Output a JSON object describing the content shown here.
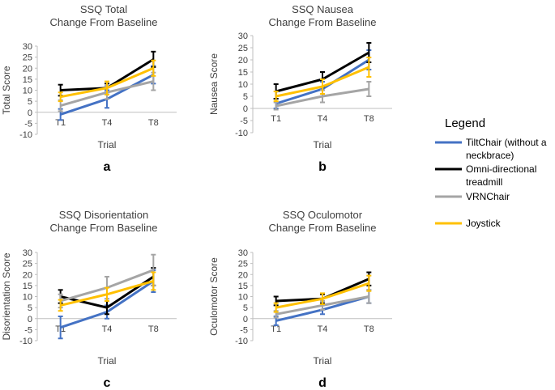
{
  "legend": {
    "title": "Legend",
    "items": [
      {
        "lines": [
          "TiltChair (without a",
          "neckbrace)"
        ],
        "color": "#4472C4"
      },
      {
        "lines": [
          "Omni-directional",
          "treadmill"
        ],
        "color": "#000000"
      },
      {
        "lines": [
          "VRNChair"
        ],
        "color": "#A5A5A5"
      },
      {
        "lines": [
          "Joystick"
        ],
        "color": "#FFC000"
      }
    ]
  },
  "chart_data": [
    {
      "type": "line",
      "panel": "a",
      "title": [
        "SSQ Total",
        "Change From Baseline"
      ],
      "xlabel": "Trial",
      "ylabel": "Total Score",
      "categories": [
        "T1",
        "T4",
        "T8"
      ],
      "ylim": [
        -10,
        30
      ],
      "yticks": [
        -10,
        -5,
        0,
        5,
        10,
        15,
        20,
        25,
        30
      ],
      "series": [
        {
          "name": "TiltChair (without a neckbrace)",
          "color": "#4472C4",
          "values": [
            -1,
            6,
            17
          ],
          "errors": [
            2.5,
            4,
            4
          ]
        },
        {
          "name": "Omni-directional treadmill",
          "color": "#000000",
          "values": [
            10,
            11,
            24
          ],
          "errors": [
            2.5,
            2,
            3.5
          ]
        },
        {
          "name": "VRNChair",
          "color": "#A5A5A5",
          "values": [
            3,
            9,
            14
          ],
          "errors": [
            2.5,
            3,
            4
          ]
        },
        {
          "name": "Joystick",
          "color": "#FFC000",
          "values": [
            7,
            11,
            20
          ],
          "errors": [
            2,
            3,
            3.5
          ]
        }
      ]
    },
    {
      "type": "line",
      "panel": "b",
      "title": [
        "SSQ Nausea",
        "Change From Baseline"
      ],
      "xlabel": "Trial",
      "ylabel": "Nausea Score",
      "categories": [
        "T1",
        "T4",
        "T8"
      ],
      "ylim": [
        -10,
        30
      ],
      "yticks": [
        -10,
        -5,
        0,
        5,
        10,
        15,
        20,
        25,
        30
      ],
      "series": [
        {
          "name": "TiltChair (without a neckbrace)",
          "color": "#4472C4",
          "values": [
            2,
            8,
            20
          ],
          "errors": [
            2,
            3,
            4
          ]
        },
        {
          "name": "Omni-directional treadmill",
          "color": "#000000",
          "values": [
            7,
            12,
            23
          ],
          "errors": [
            3,
            3,
            4
          ]
        },
        {
          "name": "VRNChair",
          "color": "#A5A5A5",
          "values": [
            1,
            5,
            8
          ],
          "errors": [
            1.5,
            2.5,
            3
          ]
        },
        {
          "name": "Joystick",
          "color": "#FFC000",
          "values": [
            5,
            9,
            17
          ],
          "errors": [
            2,
            3,
            4
          ]
        }
      ]
    },
    {
      "type": "line",
      "panel": "c",
      "title": [
        "SSQ Disorientation",
        "Change From Baseline"
      ],
      "xlabel": "Trial",
      "ylabel": "Disorientation Score",
      "categories": [
        "T1",
        "T4",
        "T8"
      ],
      "ylim": [
        -10,
        30
      ],
      "yticks": [
        -10,
        -5,
        0,
        5,
        10,
        15,
        20,
        25,
        30
      ],
      "series": [
        {
          "name": "TiltChair (without a neckbrace)",
          "color": "#4472C4",
          "values": [
            -4,
            3,
            17
          ],
          "errors": [
            5,
            3,
            5
          ]
        },
        {
          "name": "Omni-directional treadmill",
          "color": "#000000",
          "values": [
            10,
            5,
            19
          ],
          "errors": [
            3,
            3,
            4
          ]
        },
        {
          "name": "VRNChair",
          "color": "#A5A5A5",
          "values": [
            8,
            14,
            22
          ],
          "errors": [
            3,
            5,
            7
          ]
        },
        {
          "name": "Joystick",
          "color": "#FFC000",
          "values": [
            6,
            11,
            17
          ],
          "errors": [
            2.5,
            3,
            4
          ]
        }
      ]
    },
    {
      "type": "line",
      "panel": "d",
      "title": [
        "SSQ Oculomotor",
        "Change From Baseline"
      ],
      "xlabel": "Trial",
      "ylabel": "Oculomotor Score",
      "categories": [
        "T1",
        "T4",
        "T8"
      ],
      "ylim": [
        -10,
        30
      ],
      "yticks": [
        -10,
        -5,
        0,
        5,
        10,
        15,
        20,
        25,
        30
      ],
      "series": [
        {
          "name": "TiltChair (without a neckbrace)",
          "color": "#4472C4",
          "values": [
            -1,
            4,
            10
          ],
          "errors": [
            2,
            2,
            3
          ]
        },
        {
          "name": "Omni-directional treadmill",
          "color": "#000000",
          "values": [
            8,
            9,
            18
          ],
          "errors": [
            2,
            2,
            3
          ]
        },
        {
          "name": "VRNChair",
          "color": "#A5A5A5",
          "values": [
            2,
            6,
            10
          ],
          "errors": [
            1.5,
            2,
            3
          ]
        },
        {
          "name": "Joystick",
          "color": "#FFC000",
          "values": [
            5,
            9,
            16
          ],
          "errors": [
            2,
            2.5,
            3.5
          ]
        }
      ]
    }
  ]
}
